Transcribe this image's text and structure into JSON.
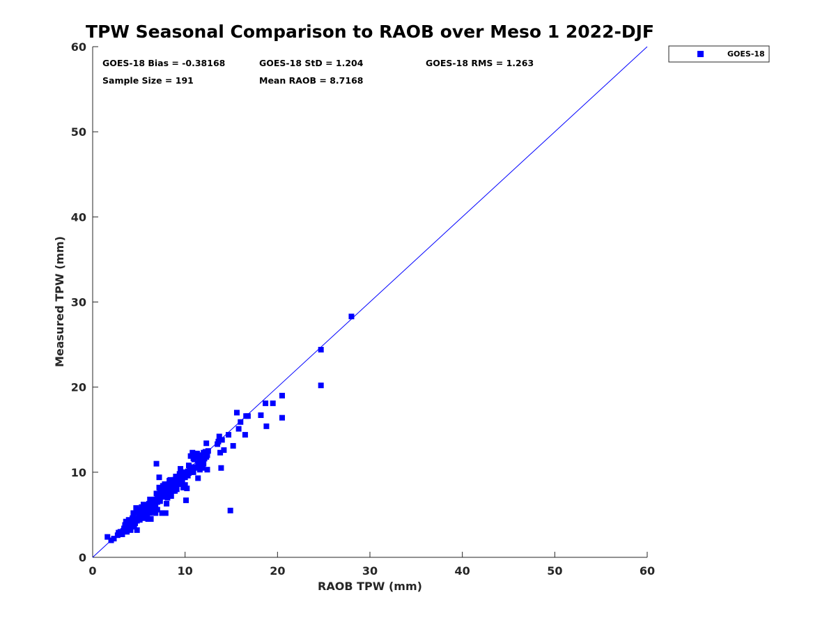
{
  "chart_data": {
    "type": "scatter",
    "title": "TPW Seasonal Comparison to RAOB over Meso 1 2022-DJF",
    "xlabel": "RAOB TPW (mm)",
    "ylabel": "Measured TPW (mm)",
    "xlim": [
      0,
      60
    ],
    "ylim": [
      0,
      60
    ],
    "xticks": [
      0,
      10,
      20,
      30,
      40,
      50,
      60
    ],
    "yticks": [
      0,
      10,
      20,
      30,
      40,
      50,
      60
    ],
    "grid": false,
    "legend_position": "outside-top-right",
    "series_color": "#0000ff",
    "reference_line": {
      "type": "one-to-one",
      "from": [
        0,
        0
      ],
      "to": [
        60,
        60
      ]
    },
    "stats": {
      "bias": "GOES-18 Bias = -0.38168",
      "std": "GOES-18 StD = 1.204",
      "rms": "GOES-18 RMS = 1.263",
      "sample_size": "Sample Size = 191",
      "mean_raob": "Mean RAOB = 8.7168"
    },
    "series": [
      {
        "name": "GOES-18",
        "marker": "square",
        "points": [
          [
            1.6,
            2.4
          ],
          [
            2.0,
            2.0
          ],
          [
            2.3,
            2.2
          ],
          [
            2.8,
            2.9
          ],
          [
            3.0,
            3.0
          ],
          [
            3.2,
            2.7
          ],
          [
            3.4,
            3.4
          ],
          [
            3.5,
            3.8
          ],
          [
            3.6,
            4.2
          ],
          [
            3.8,
            3.5
          ],
          [
            3.9,
            4.4
          ],
          [
            4.0,
            3.9
          ],
          [
            4.1,
            3.2
          ],
          [
            4.2,
            4.0
          ],
          [
            4.3,
            4.6
          ],
          [
            4.4,
            5.2
          ],
          [
            4.5,
            3.8
          ],
          [
            4.6,
            4.2
          ],
          [
            4.7,
            5.8
          ],
          [
            4.8,
            3.2
          ],
          [
            4.9,
            4.6
          ],
          [
            5.0,
            5.0
          ],
          [
            5.1,
            4.4
          ],
          [
            5.2,
            5.4
          ],
          [
            5.3,
            4.8
          ],
          [
            5.4,
            5.0
          ],
          [
            5.5,
            6.2
          ],
          [
            5.6,
            4.6
          ],
          [
            5.7,
            5.5
          ],
          [
            5.8,
            5.1
          ],
          [
            5.9,
            4.9
          ],
          [
            6.0,
            5.8
          ],
          [
            6.1,
            6.3
          ],
          [
            6.2,
            5.2
          ],
          [
            6.3,
            4.5
          ],
          [
            6.4,
            6.6
          ],
          [
            6.5,
            6.0
          ],
          [
            6.6,
            5.4
          ],
          [
            6.7,
            6.8
          ],
          [
            6.8,
            6.2
          ],
          [
            6.9,
            7.5
          ],
          [
            7.0,
            5.6
          ],
          [
            7.1,
            7.0
          ],
          [
            7.2,
            8.2
          ],
          [
            7.3,
            6.6
          ],
          [
            7.4,
            7.8
          ],
          [
            7.5,
            5.2
          ],
          [
            7.6,
            7.1
          ],
          [
            7.7,
            7.6
          ],
          [
            7.8,
            8.6
          ],
          [
            7.9,
            5.2
          ],
          [
            8.0,
            6.3
          ],
          [
            8.1,
            8.0
          ],
          [
            8.2,
            7.4
          ],
          [
            8.3,
            9.0
          ],
          [
            8.4,
            8.3
          ],
          [
            8.5,
            7.2
          ],
          [
            8.6,
            8.8
          ],
          [
            8.7,
            7.8
          ],
          [
            8.8,
            9.1
          ],
          [
            8.9,
            8.4
          ],
          [
            9.0,
            9.5
          ],
          [
            9.1,
            8.0
          ],
          [
            9.2,
            9.0
          ],
          [
            9.3,
            8.6
          ],
          [
            9.4,
            9.8
          ],
          [
            9.5,
            10.4
          ],
          [
            9.6,
            9.2
          ],
          [
            9.7,
            8.8
          ],
          [
            9.8,
            9.6
          ],
          [
            9.9,
            10.0
          ],
          [
            10.0,
            8.5
          ],
          [
            10.1,
            6.7
          ],
          [
            10.2,
            9.7
          ],
          [
            10.3,
            10.1
          ],
          [
            10.4,
            9.9
          ],
          [
            10.5,
            10.2
          ],
          [
            10.6,
            11.9
          ],
          [
            10.7,
            10.4
          ],
          [
            10.8,
            12.3
          ],
          [
            10.9,
            10.0
          ],
          [
            11.0,
            11.5
          ],
          [
            11.1,
            12.1
          ],
          [
            11.2,
            10.6
          ],
          [
            11.3,
            11.8
          ],
          [
            11.4,
            9.3
          ],
          [
            11.5,
            12.0
          ],
          [
            11.6,
            11.2
          ],
          [
            11.7,
            10.8
          ],
          [
            11.8,
            11.4
          ],
          [
            11.9,
            10.5
          ],
          [
            12.0,
            11.0
          ],
          [
            12.2,
            12.4
          ],
          [
            12.3,
            11.8
          ],
          [
            12.4,
            10.3
          ],
          [
            12.5,
            12.5
          ],
          [
            12.3,
            13.4
          ],
          [
            13.5,
            13.3
          ],
          [
            13.7,
            14.2
          ],
          [
            13.8,
            12.3
          ],
          [
            13.9,
            10.5
          ],
          [
            14.0,
            13.8
          ],
          [
            14.2,
            12.6
          ],
          [
            14.7,
            14.4
          ],
          [
            15.2,
            13.1
          ],
          [
            15.6,
            17.0
          ],
          [
            15.8,
            15.1
          ],
          [
            16.0,
            15.9
          ],
          [
            16.5,
            14.4
          ],
          [
            16.6,
            16.6
          ],
          [
            16.8,
            16.6
          ],
          [
            18.2,
            16.7
          ],
          [
            18.7,
            18.1
          ],
          [
            18.8,
            15.4
          ],
          [
            19.5,
            18.1
          ],
          [
            20.5,
            19.0
          ],
          [
            20.5,
            16.4
          ],
          [
            24.7,
            24.4
          ],
          [
            24.7,
            20.2
          ],
          [
            28.0,
            28.3
          ],
          [
            14.9,
            5.5
          ],
          [
            6.9,
            11.0
          ],
          [
            7.2,
            9.4
          ],
          [
            3.7,
            3.0
          ],
          [
            4.1,
            3.4
          ],
          [
            4.6,
            4.0
          ],
          [
            5.0,
            4.5
          ],
          [
            5.3,
            5.9
          ],
          [
            5.7,
            5.0
          ],
          [
            6.0,
            4.5
          ],
          [
            6.4,
            5.6
          ],
          [
            6.8,
            5.2
          ],
          [
            7.0,
            6.5
          ],
          [
            7.4,
            7.2
          ],
          [
            7.8,
            7.9
          ],
          [
            8.1,
            7.0
          ],
          [
            8.6,
            8.0
          ],
          [
            8.9,
            7.8
          ],
          [
            9.3,
            9.4
          ],
          [
            9.6,
            10.0
          ],
          [
            10.0,
            9.4
          ],
          [
            10.4,
            10.8
          ],
          [
            10.9,
            11.6
          ],
          [
            11.3,
            12.2
          ],
          [
            11.7,
            12.0
          ],
          [
            12.1,
            11.6
          ],
          [
            9.8,
            8.2
          ],
          [
            10.2,
            8.1
          ],
          [
            8.4,
            9.1
          ],
          [
            7.6,
            8.4
          ],
          [
            6.6,
            6.0
          ],
          [
            6.2,
            6.8
          ],
          [
            5.5,
            5.6
          ],
          [
            4.9,
            5.3
          ],
          [
            4.4,
            4.4
          ],
          [
            3.9,
            3.7
          ],
          [
            3.3,
            3.1
          ],
          [
            2.7,
            2.6
          ],
          [
            5.2,
            4.9
          ],
          [
            5.8,
            5.3
          ],
          [
            6.3,
            5.7
          ],
          [
            6.7,
            6.4
          ],
          [
            7.1,
            6.8
          ],
          [
            7.5,
            7.4
          ],
          [
            7.9,
            7.7
          ],
          [
            8.3,
            8.1
          ],
          [
            8.8,
            8.6
          ],
          [
            9.2,
            8.9
          ],
          [
            9.6,
            9.3
          ],
          [
            10.0,
            9.8
          ],
          [
            10.5,
            10.1
          ],
          [
            11.0,
            10.5
          ],
          [
            11.4,
            11.0
          ],
          [
            11.9,
            11.3
          ],
          [
            12.4,
            12.0
          ],
          [
            13.6,
            13.6
          ],
          [
            4.3,
            3.6
          ],
          [
            4.8,
            4.3
          ],
          [
            5.4,
            5.3
          ],
          [
            6.1,
            5.5
          ],
          [
            6.5,
            6.3
          ],
          [
            7.3,
            7.6
          ],
          [
            8.2,
            8.6
          ],
          [
            9.0,
            9.2
          ],
          [
            9.5,
            9.6
          ],
          [
            10.3,
            9.6
          ],
          [
            10.8,
            10.6
          ],
          [
            11.2,
            11.8
          ],
          [
            11.6,
            10.3
          ],
          [
            12.0,
            12.3
          ],
          [
            10.6,
            10.0
          ],
          [
            5.1,
            5.6
          ],
          [
            6.8,
            6.6
          ],
          [
            8.0,
            8.2
          ],
          [
            9.1,
            9.3
          ],
          [
            7.0,
            7.2
          ],
          [
            5.9,
            6.1
          ],
          [
            4.0,
            4.2
          ],
          [
            3.4,
            3.3
          ]
        ]
      }
    ]
  }
}
